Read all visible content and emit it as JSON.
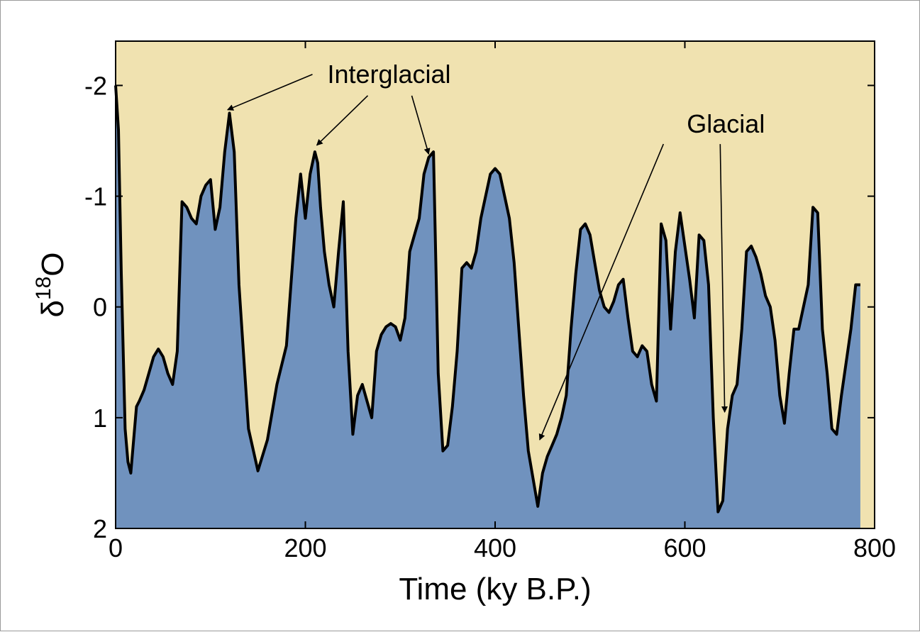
{
  "chart_data": {
    "type": "area",
    "xlabel": "Time (ky B.P.)",
    "ylabel_main": "δ",
    "ylabel_sup": "18",
    "ylabel_tail": "O",
    "xlim": [
      0,
      800
    ],
    "ylim": [
      2,
      -2.4
    ],
    "y_inverted": true,
    "xticks": [
      0,
      200,
      400,
      600,
      800
    ],
    "yticks": [
      -2,
      -1,
      0,
      1,
      2
    ],
    "grid": false,
    "colors": {
      "background": "#f0e2b0",
      "fill": "#7092be",
      "line": "#000000"
    },
    "series": [
      {
        "x": [
          0,
          3,
          6,
          10,
          13,
          16,
          19,
          22,
          25,
          30,
          35,
          40,
          45,
          50,
          55,
          60,
          65,
          70,
          75,
          80,
          85,
          90,
          95,
          100,
          105,
          110,
          115,
          120,
          125,
          130,
          140,
          150,
          160,
          170,
          180,
          190,
          195,
          200,
          205,
          210,
          213,
          216,
          220,
          225,
          230,
          235,
          240,
          245,
          250,
          255,
          260,
          265,
          270,
          275,
          280,
          285,
          290,
          295,
          300,
          305,
          310,
          315,
          320,
          325,
          330,
          335,
          340,
          345,
          350,
          355,
          360,
          365,
          370,
          375,
          380,
          385,
          390,
          395,
          400,
          405,
          410,
          415,
          420,
          425,
          430,
          435,
          440,
          445,
          450,
          455,
          460,
          465,
          470,
          475,
          480,
          485,
          490,
          495,
          500,
          505,
          510,
          515,
          520,
          525,
          530,
          535,
          540,
          545,
          550,
          555,
          560,
          565,
          570,
          575,
          580,
          585,
          590,
          595,
          600,
          605,
          610,
          615,
          620,
          625,
          630,
          635,
          640,
          645,
          650,
          655,
          660,
          665,
          670,
          675,
          680,
          685,
          690,
          695,
          700,
          705,
          710,
          715,
          720,
          725,
          730,
          735,
          740,
          745,
          750,
          755,
          760,
          765,
          770,
          775,
          780,
          785
        ],
        "y": [
          -2.0,
          -1.6,
          -0.3,
          1.1,
          1.4,
          1.5,
          1.2,
          0.9,
          0.85,
          0.75,
          0.6,
          0.45,
          0.38,
          0.45,
          0.6,
          0.7,
          0.4,
          -0.95,
          -0.9,
          -0.8,
          -0.75,
          -1.0,
          -1.1,
          -1.15,
          -0.7,
          -0.9,
          -1.4,
          -1.75,
          -1.4,
          -0.2,
          1.1,
          1.48,
          1.2,
          0.7,
          0.35,
          -0.8,
          -1.2,
          -0.8,
          -1.2,
          -1.4,
          -1.3,
          -0.9,
          -0.5,
          -0.2,
          0.0,
          -0.5,
          -0.95,
          0.4,
          1.15,
          0.8,
          0.7,
          0.85,
          1.0,
          0.4,
          0.25,
          0.18,
          0.15,
          0.18,
          0.3,
          0.1,
          -0.5,
          -0.65,
          -0.8,
          -1.2,
          -1.35,
          -1.4,
          0.6,
          1.3,
          1.25,
          0.9,
          0.4,
          -0.35,
          -0.4,
          -0.35,
          -0.5,
          -0.8,
          -1.0,
          -1.2,
          -1.25,
          -1.2,
          -1.0,
          -0.8,
          -0.4,
          0.2,
          0.8,
          1.3,
          1.55,
          1.8,
          1.5,
          1.35,
          1.25,
          1.15,
          1.0,
          0.8,
          0.2,
          -0.3,
          -0.7,
          -0.75,
          -0.65,
          -0.4,
          -0.15,
          0.0,
          0.05,
          -0.05,
          -0.2,
          -0.25,
          0.1,
          0.4,
          0.45,
          0.35,
          0.4,
          0.7,
          0.85,
          -0.75,
          -0.6,
          0.2,
          -0.5,
          -0.85,
          -0.55,
          -0.25,
          0.1,
          -0.65,
          -0.6,
          -0.2,
          1.0,
          1.85,
          1.75,
          1.1,
          0.8,
          0.7,
          0.2,
          -0.5,
          -0.55,
          -0.45,
          -0.3,
          -0.1,
          0.0,
          0.3,
          0.8,
          1.05,
          0.6,
          0.2,
          0.2,
          0.0,
          -0.2,
          -0.9,
          -0.85,
          0.2,
          0.6,
          1.1,
          1.15,
          0.8,
          0.5,
          0.2,
          -0.2,
          -0.2
        ]
      }
    ],
    "annotations": [
      {
        "text": "Interglacial",
        "anchor_x": 200,
        "anchor_y": -2.1,
        "targets": [
          [
            118,
            -1.78
          ],
          [
            212,
            -1.46
          ],
          [
            330,
            -1.38
          ]
        ]
      },
      {
        "text": "Glacial",
        "anchor_x": 555,
        "anchor_y": -1.65,
        "targets": [
          [
            447,
            1.2
          ],
          [
            642,
            0.95
          ]
        ]
      }
    ]
  }
}
